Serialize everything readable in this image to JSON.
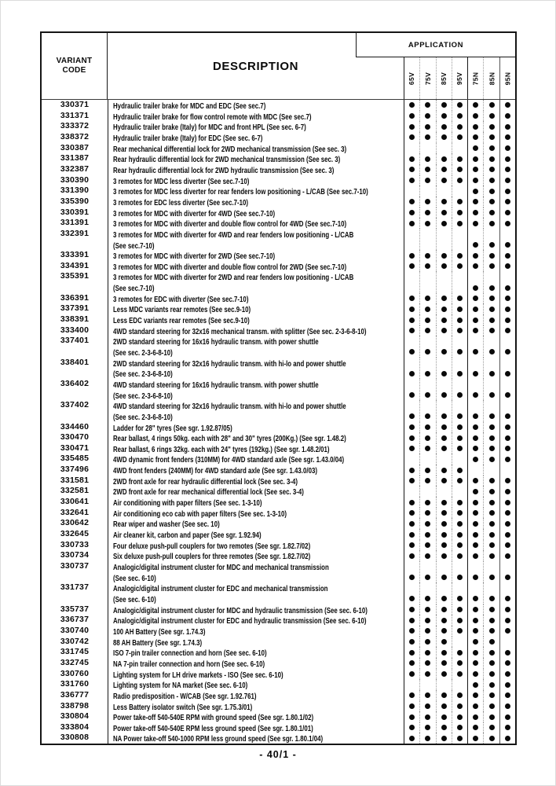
{
  "colors": {
    "text": "#0a0a0a",
    "line_dark": "#161616",
    "line_light": "#9a9a9a"
  },
  "footer": {
    "page_number": "- 40/1 -"
  },
  "table": {
    "headers": {
      "variant_code_line1": "VARIANT",
      "variant_code_line2": "CODE",
      "description": "DESCRIPTION",
      "application": "APPLICATION"
    },
    "columns": [
      "65V",
      "75V",
      "85V",
      "95V",
      "75N",
      "85N",
      "95N"
    ],
    "rows": [
      {
        "code": "330371",
        "lines": [
          "Hydraulic trailer brake for MDC and EDC (See sec.7)"
        ],
        "dots": [
          1,
          1,
          1,
          1,
          1,
          1,
          1
        ]
      },
      {
        "code": "331371",
        "lines": [
          "Hydraulic trailer brake for flow control remote with MDC (See sec.7)"
        ],
        "dots": [
          1,
          1,
          1,
          1,
          1,
          1,
          1
        ]
      },
      {
        "code": "333372",
        "lines": [
          "Hydraulic trailer brake (Italy) for MDC and front HPL (See sec. 6-7)"
        ],
        "dots": [
          1,
          1,
          1,
          1,
          1,
          1,
          1
        ]
      },
      {
        "code": "338372",
        "lines": [
          "Hydraulic trailer brake (Italy) for EDC (See sec. 6-7)"
        ],
        "dots": [
          1,
          1,
          1,
          1,
          1,
          1,
          1
        ]
      },
      {
        "code": "330387",
        "lines": [
          "Rear mechanical differential lock for 2WD mechanical transmission (See sec. 3)"
        ],
        "dots": [
          0,
          0,
          0,
          0,
          1,
          1,
          1
        ]
      },
      {
        "code": "331387",
        "lines": [
          "Rear hydraulic differential lock for 2WD mechanical transmission (See sec. 3)"
        ],
        "dots": [
          1,
          1,
          1,
          1,
          1,
          1,
          1
        ]
      },
      {
        "code": "332387",
        "lines": [
          "Rear hydraulic differential lock for 2WD hydraulic transmission (See sec. 3)"
        ],
        "dots": [
          1,
          1,
          1,
          1,
          1,
          1,
          1
        ]
      },
      {
        "code": "330390",
        "lines": [
          "3 remotes for MDC less diverter (See sec.7-10)"
        ],
        "dots": [
          1,
          1,
          1,
          1,
          1,
          1,
          1
        ]
      },
      {
        "code": "331390",
        "lines": [
          "3 remotes for MDC less diverter for rear fenders low positioning - L/CAB (See sec.7-10)"
        ],
        "dots": [
          0,
          0,
          0,
          0,
          1,
          1,
          1
        ]
      },
      {
        "code": "335390",
        "lines": [
          "3 remotes for EDC less diverter (See sec.7-10)"
        ],
        "dots": [
          1,
          1,
          1,
          1,
          1,
          1,
          1
        ]
      },
      {
        "code": "330391",
        "lines": [
          "3 remotes for MDC with diverter for 4WD (See sec.7-10)"
        ],
        "dots": [
          1,
          1,
          1,
          1,
          1,
          1,
          1
        ]
      },
      {
        "code": "331391",
        "lines": [
          "3 remotes for MDC with diverter and double flow control for 4WD (See sec.7-10)"
        ],
        "dots": [
          1,
          1,
          1,
          1,
          1,
          1,
          1
        ]
      },
      {
        "code": "332391",
        "lines": [
          "3 remotes for MDC with diverter for 4WD and rear fenders low positioning - L/CAB",
          "(See sec.7-10)"
        ],
        "dots": [
          0,
          0,
          0,
          0,
          1,
          1,
          1
        ]
      },
      {
        "code": "333391",
        "lines": [
          "3 remotes for MDC with diverter for 2WD (See sec.7-10)"
        ],
        "dots": [
          1,
          1,
          1,
          1,
          1,
          1,
          1
        ]
      },
      {
        "code": "334391",
        "lines": [
          "3 remotes for MDC with diverter and double flow control for 2WD (See sec.7-10)"
        ],
        "dots": [
          1,
          1,
          1,
          1,
          1,
          1,
          1
        ]
      },
      {
        "code": "335391",
        "lines": [
          "3 remotes for MDC with diverter for 2WD and rear fenders low positioning - L/CAB",
          "(See sec.7-10)"
        ],
        "dots": [
          0,
          0,
          0,
          0,
          1,
          1,
          1
        ]
      },
      {
        "code": "336391",
        "lines": [
          "3 remotes for EDC with diverter (See sec.7-10)"
        ],
        "dots": [
          1,
          1,
          1,
          1,
          1,
          1,
          1
        ]
      },
      {
        "code": "337391",
        "lines": [
          "Less MDC variants rear remotes (See sec.9-10)"
        ],
        "dots": [
          1,
          1,
          1,
          1,
          1,
          1,
          1
        ]
      },
      {
        "code": "338391",
        "lines": [
          "Less EDC variants rear remotes (See sec.9-10)"
        ],
        "dots": [
          1,
          1,
          1,
          1,
          1,
          1,
          1
        ]
      },
      {
        "code": "333400",
        "lines": [
          "4WD standard steering for 32x16 mechanical transm. with splitter (See sec. 2-3-6-8-10)"
        ],
        "dots": [
          1,
          1,
          1,
          1,
          1,
          1,
          1
        ]
      },
      {
        "code": "337401",
        "lines": [
          "2WD standard steering for 16x16 hydraulic transm. with power shuttle",
          "(See sec. 2-3-6-8-10)"
        ],
        "dots": [
          1,
          1,
          1,
          1,
          1,
          1,
          1
        ]
      },
      {
        "code": "338401",
        "lines": [
          "2WD standard steering for 32x16 hydraulic transm. with hi-lo and power shuttle",
          "(See sec. 2-3-6-8-10)"
        ],
        "dots": [
          1,
          1,
          1,
          1,
          1,
          1,
          1
        ]
      },
      {
        "code": "336402",
        "lines": [
          "4WD standard steering for 16x16 hydraulic transm. with power shuttle",
          "(See sec. 2-3-6-8-10)"
        ],
        "dots": [
          1,
          1,
          1,
          1,
          1,
          1,
          1
        ]
      },
      {
        "code": "337402",
        "lines": [
          "4WD standard steering for 32x16 hydraulic transm. with hi-lo and power shuttle",
          "(See sec. 2-3-6-8-10)"
        ],
        "dots": [
          1,
          1,
          1,
          1,
          1,
          1,
          1
        ]
      },
      {
        "code": "334460",
        "lines": [
          "Ladder for 28\" tyres (See sgr. 1.92.87/05)"
        ],
        "dots": [
          1,
          1,
          1,
          1,
          1,
          1,
          1
        ]
      },
      {
        "code": "330470",
        "lines": [
          "Rear ballast, 4 rings 50kg. each with 28\" and 30\" tyres (200Kg.) (See sgr. 1.48.2)"
        ],
        "dots": [
          1,
          1,
          1,
          1,
          1,
          1,
          1
        ]
      },
      {
        "code": "330471",
        "lines": [
          "Rear ballast, 6 rings 32kg. each with 24\" tyres (192kg.) (See sgr. 1.48.2/01)"
        ],
        "dots": [
          1,
          1,
          1,
          1,
          1,
          1,
          1
        ]
      },
      {
        "code": "335485",
        "lines": [
          "4WD dynamic front fenders (310MM) for 4WD standard axle (See sgr. 1.43.0/04)"
        ],
        "dots": [
          0,
          0,
          0,
          0,
          1,
          1,
          1
        ]
      },
      {
        "code": "337496",
        "lines": [
          "4WD front fenders (240MM) for 4WD standard axle (See sgr. 1.43.0/03)"
        ],
        "dots": [
          1,
          1,
          1,
          1,
          0,
          0,
          0
        ]
      },
      {
        "code": "331581",
        "lines": [
          "2WD front axle for rear hydraulic differential lock (See sec. 3-4)"
        ],
        "dots": [
          1,
          1,
          1,
          1,
          1,
          1,
          1
        ]
      },
      {
        "code": "332581",
        "lines": [
          "2WD front axle for rear mechanical differential lock (See sec. 3-4)"
        ],
        "dots": [
          0,
          0,
          0,
          0,
          1,
          1,
          1
        ]
      },
      {
        "code": "330641",
        "lines": [
          "Air conditioning with paper filters (See sec. 1-3-10)"
        ],
        "dots": [
          1,
          1,
          1,
          1,
          1,
          1,
          1
        ]
      },
      {
        "code": "332641",
        "lines": [
          "Air conditioning eco cab with paper filters (See sec. 1-3-10)"
        ],
        "dots": [
          1,
          1,
          1,
          1,
          1,
          1,
          1
        ]
      },
      {
        "code": "330642",
        "lines": [
          "Rear wiper and washer (See sec. 10)"
        ],
        "dots": [
          1,
          1,
          1,
          1,
          1,
          1,
          1
        ]
      },
      {
        "code": "332645",
        "lines": [
          "Air cleaner kit, carbon and paper (See sgr. 1.92.94)"
        ],
        "dots": [
          1,
          1,
          1,
          1,
          1,
          1,
          1
        ]
      },
      {
        "code": "330733",
        "lines": [
          "Four deluxe push-pull couplers for two remotes (See sgr. 1.82.7/02)"
        ],
        "dots": [
          1,
          1,
          1,
          1,
          1,
          1,
          1
        ]
      },
      {
        "code": "330734",
        "lines": [
          "Six deluxe push-pull couplers for three remotes (See sgr. 1.82.7/02)"
        ],
        "dots": [
          1,
          1,
          1,
          1,
          1,
          1,
          1
        ]
      },
      {
        "code": "330737",
        "lines": [
          "Analogic/digital instrument cluster for MDC and mechanical transmission",
          "(See sec. 6-10)"
        ],
        "dots": [
          1,
          1,
          1,
          1,
          1,
          1,
          1
        ]
      },
      {
        "code": "331737",
        "lines": [
          "Analogic/digital instrument cluster for EDC and mechanical transmission",
          "(See sec. 6-10)"
        ],
        "dots": [
          1,
          1,
          1,
          1,
          1,
          1,
          1
        ]
      },
      {
        "code": "335737",
        "lines": [
          "Analogic/digital instrument cluster for MDC and hydraulic transmission (See sec. 6-10)"
        ],
        "dots": [
          1,
          1,
          1,
          1,
          1,
          1,
          1
        ]
      },
      {
        "code": "336737",
        "lines": [
          "Analogic/digital instrument cluster for EDC and hydraulic transmission (See sec. 6-10)"
        ],
        "dots": [
          1,
          1,
          1,
          1,
          1,
          1,
          1
        ]
      },
      {
        "code": "330740",
        "lines": [
          "100 AH Battery (See sgr. 1.74.3)"
        ],
        "dots": [
          1,
          1,
          1,
          1,
          1,
          1,
          1
        ]
      },
      {
        "code": "330742",
        "lines": [
          "88 AH Battery (See sgr. 1.74.3)"
        ],
        "dots": [
          1,
          1,
          1,
          0,
          1,
          1,
          0
        ]
      },
      {
        "code": "331745",
        "lines": [
          "ISO 7-pin trailer connection and horn (See sec. 6-10)"
        ],
        "dots": [
          1,
          1,
          1,
          1,
          1,
          1,
          1
        ]
      },
      {
        "code": "332745",
        "lines": [
          "NA 7-pin trailer connection and horn (See sec. 6-10)"
        ],
        "dots": [
          1,
          1,
          1,
          1,
          1,
          1,
          1
        ]
      },
      {
        "code": "330760",
        "lines": [
          "Lighting system for LH drive markets - ISO (See sec. 6-10)"
        ],
        "dots": [
          1,
          1,
          1,
          1,
          1,
          1,
          1
        ]
      },
      {
        "code": "331760",
        "lines": [
          "Lighting system for NA market (See sec. 6-10)"
        ],
        "dots": [
          0,
          0,
          0,
          0,
          1,
          1,
          1
        ]
      },
      {
        "code": "336777",
        "lines": [
          "Radio predisposition - W/CAB (See sgr. 1.92.761)"
        ],
        "dots": [
          1,
          1,
          1,
          1,
          1,
          1,
          1
        ]
      },
      {
        "code": "338798",
        "lines": [
          "Less Battery isolator switch (See sgr. 1.75.3/01)"
        ],
        "dots": [
          1,
          1,
          1,
          1,
          1,
          1,
          1
        ]
      },
      {
        "code": "330804",
        "lines": [
          "Power take-off 540-540E RPM with ground speed (See sgr. 1.80.1/02)"
        ],
        "dots": [
          1,
          1,
          1,
          1,
          1,
          1,
          1
        ]
      },
      {
        "code": "333804",
        "lines": [
          "Power take-off 540-540E RPM less ground speed (See sgr. 1.80.1/01)"
        ],
        "dots": [
          1,
          1,
          1,
          1,
          1,
          1,
          1
        ]
      },
      {
        "code": "330808",
        "lines": [
          "NA Power take-off 540-1000 RPM less ground speed (See sgr. 1.80.1/04)"
        ],
        "dots": [
          1,
          1,
          1,
          1,
          1,
          1,
          1
        ]
      }
    ]
  }
}
